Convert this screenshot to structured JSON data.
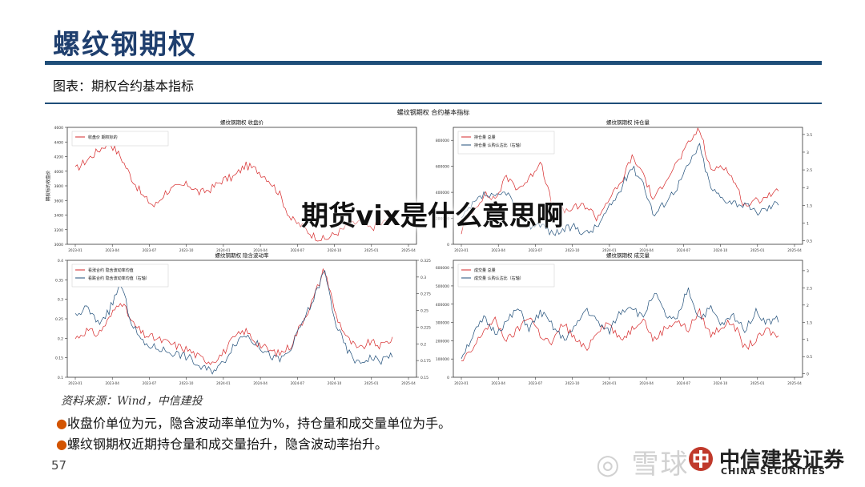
{
  "slide_title": "螺纹钢期权",
  "figure_caption": "图表：期权合约基本指标",
  "overlay_title": "期货vix是什么意思啊",
  "source_note": "资料来源：Wind，中信建投",
  "notes": [
    "收盘价单位为元，隐含波动率单位为%，持仓量和成交量单位为手。",
    "螺纹钢期权近期持仓量和成交量抬升，隐含波动率抬升。"
  ],
  "bullet_glyph": "●",
  "page_number": "57",
  "watermark_text": "雪球",
  "brand": {
    "name_cn": "中信建投证券",
    "name_en": "CHINA SECURITIES"
  },
  "colors": {
    "title": "#1f3f6e",
    "rule": "#1f4e79",
    "red_series": "#d62728",
    "blue_series": "#1f4e79",
    "bullet": "#d35400"
  },
  "chart_data": [
    {
      "type": "line",
      "suptitle": "螺纹钢期权  合约基本指标",
      "title": "螺纹钢期权  收盘价",
      "ylabel": "期权标的收盘价",
      "xticks": [
        "2023-01",
        "2023-04",
        "2023-07",
        "2023-10",
        "2024-01",
        "2024-04",
        "2024-07",
        "2024-10",
        "2025-01",
        "2025-04"
      ],
      "yticks": [
        3000,
        3200,
        3400,
        3600,
        3800,
        4000,
        4200,
        4400,
        4600
      ],
      "ylim": [
        3000,
        4600
      ],
      "grid": false,
      "legend_position": "top-left",
      "series": [
        {
          "name": "收盘价  期权标的",
          "color": "#d62728",
          "axis": "left",
          "values": [
            4020,
            4150,
            4280,
            4400,
            4200,
            3900,
            3650,
            3520,
            3720,
            3780,
            3820,
            3700,
            3760,
            3880,
            3920,
            4080,
            4020,
            3900,
            3700,
            3350,
            3250,
            3120,
            3060,
            3150,
            3240,
            3310,
            3220,
            3280,
            3360
          ]
        }
      ]
    },
    {
      "type": "line",
      "title": "螺纹钢期权  持仓量",
      "xticks": [
        "2023-01",
        "2023-04",
        "2023-07",
        "2023-10",
        "2024-01",
        "2024-04",
        "2024-07",
        "2024-10",
        "2025-01",
        "2025-04"
      ],
      "yticks_left": [
        0,
        200000,
        400000,
        600000,
        800000
      ],
      "yticks_right": [
        0.5,
        1.0,
        1.5,
        2.0,
        2.5,
        3.0,
        3.5
      ],
      "ylim_left": [
        0,
        900000
      ],
      "ylim_right": [
        0.4,
        3.7
      ],
      "legend_position": "top-left",
      "series": [
        {
          "name": "持仓量  总量",
          "color": "#d62728",
          "axis": "left",
          "values": [
            100000,
            260000,
            380000,
            350000,
            520000,
            430000,
            500000,
            650000,
            300000,
            250000,
            280000,
            300000,
            200000,
            350000,
            450000,
            670000,
            560000,
            330000,
            500000,
            620000,
            760000,
            900000,
            560000,
            620000,
            500000,
            300000,
            330000,
            380000,
            400000
          ]
        },
        {
          "name": "持仓量  认购认沽比（右轴）",
          "color": "#1f4e79",
          "axis": "right",
          "values": [
            1.1,
            1.5,
            1.8,
            1.7,
            1.9,
            1.3,
            0.9,
            1.0,
            0.7,
            0.8,
            0.9,
            0.7,
            0.9,
            1.4,
            1.9,
            2.6,
            2.2,
            1.2,
            1.6,
            2.0,
            2.6,
            3.2,
            2.0,
            1.7,
            1.6,
            1.5,
            1.3,
            1.4,
            1.6
          ]
        }
      ]
    },
    {
      "type": "line",
      "title": "螺纹钢期权  隐含波动率",
      "xticks": [
        "2023-01",
        "2023-04",
        "2023-07",
        "2023-10",
        "2024-01",
        "2024-04",
        "2024-07",
        "2024-10",
        "2025-01",
        "2025-04"
      ],
      "yticks_left": [
        0.1,
        0.15,
        0.2,
        0.25,
        0.3,
        0.35,
        0.4
      ],
      "yticks_right": [
        0.15,
        0.175,
        0.2,
        0.225,
        0.25,
        0.275,
        0.3,
        0.325
      ],
      "ylim_left": [
        0.1,
        0.4
      ],
      "ylim_right": [
        0.15,
        0.325
      ],
      "legend_position": "top-left",
      "series": [
        {
          "name": "看涨合约  隐含波动率均值",
          "color": "#d62728",
          "axis": "left",
          "values": [
            0.2,
            0.22,
            0.21,
            0.25,
            0.3,
            0.24,
            0.21,
            0.2,
            0.19,
            0.18,
            0.17,
            0.15,
            0.14,
            0.16,
            0.2,
            0.22,
            0.19,
            0.17,
            0.16,
            0.18,
            0.24,
            0.3,
            0.38,
            0.26,
            0.2,
            0.17,
            0.19,
            0.18,
            0.2
          ]
        },
        {
          "name": "看跌合约  隐含波动率均值（右轴）",
          "color": "#1f4e79",
          "axis": "right",
          "values": [
            0.24,
            0.255,
            0.23,
            0.25,
            0.29,
            0.23,
            0.2,
            0.195,
            0.19,
            0.185,
            0.18,
            0.165,
            0.16,
            0.17,
            0.2,
            0.215,
            0.2,
            0.185,
            0.175,
            0.19,
            0.23,
            0.265,
            0.31,
            0.23,
            0.19,
            0.17,
            0.18,
            0.175,
            0.185
          ]
        }
      ]
    },
    {
      "type": "line",
      "title": "螺纹钢期权  成交量",
      "xticks": [
        "2023-01",
        "2023-04",
        "2023-07",
        "2023-10",
        "2024-01",
        "2024-04",
        "2024-07",
        "2024-10",
        "2025-01",
        "2025-04"
      ],
      "yticks_left": [
        0,
        100000,
        200000,
        300000,
        400000,
        500000,
        600000
      ],
      "yticks_right": [
        0.0,
        0.5,
        1.0,
        1.5,
        2.0,
        2.5,
        3.0
      ],
      "ylim_left": [
        0,
        640000
      ],
      "ylim_right": [
        -0.1,
        3.3
      ],
      "legend_position": "top-left",
      "series": [
        {
          "name": "成交量  总量",
          "color": "#d62728",
          "axis": "left",
          "values": [
            80000,
            150000,
            260000,
            310000,
            200000,
            260000,
            340000,
            230000,
            180000,
            300000,
            210000,
            150000,
            260000,
            300000,
            200000,
            260000,
            330000,
            200000,
            270000,
            310000,
            260000,
            360000,
            230000,
            280000,
            300000,
            160000,
            200000,
            260000,
            220000
          ]
        },
        {
          "name": "成交量  认购认沽比（右轴）",
          "color": "#1f4e79",
          "axis": "right",
          "values": [
            0.5,
            1.1,
            1.6,
            1.2,
            1.5,
            1.9,
            1.3,
            1.8,
            1.4,
            1.0,
            1.3,
            1.9,
            1.5,
            1.2,
            1.8,
            2.0,
            1.6,
            2.4,
            1.7,
            1.5,
            2.5,
            1.6,
            1.9,
            1.4,
            1.7,
            1.3,
            1.8,
            1.5,
            1.6
          ]
        }
      ]
    }
  ]
}
